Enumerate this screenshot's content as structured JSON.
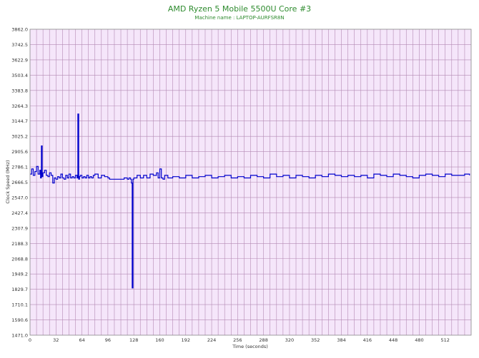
{
  "colors": {
    "title": "#2e8b2e",
    "plot_bg": "#f5e6fa",
    "grid": "#b48ab4",
    "line": "#0000cc"
  },
  "chart_data": {
    "type": "line",
    "title": "AMD Ryzen 5 Mobile 5500U Core #3",
    "subtitle": "Machine name : LAPTOP-AURFSR8N",
    "xlabel": "Time (seconds)",
    "ylabel": "Clock Speed (MHz)",
    "xlim": [
      0,
      544
    ],
    "ylim": [
      1471.0,
      3862.0
    ],
    "xticks": [
      "0",
      "32",
      "64",
      "96",
      "128",
      "160",
      "192",
      "224",
      "256",
      "288",
      "320",
      "352",
      "384",
      "416",
      "448",
      "480",
      "512"
    ],
    "yticks": [
      "3862.0",
      "3742.5",
      "3622.9",
      "3503.4",
      "3383.8",
      "3264.3",
      "3144.7",
      "3025.2",
      "2905.6",
      "2786.1",
      "2666.5",
      "2547.0",
      "2427.4",
      "2307.9",
      "2188.3",
      "2068.8",
      "1949.2",
      "1829.7",
      "1710.1",
      "1590.6",
      "1471.0"
    ],
    "grid": true,
    "series": [
      {
        "x": [
          0,
          2,
          4,
          6,
          8,
          10,
          12,
          13,
          14,
          15,
          16,
          18,
          20,
          22,
          24,
          26,
          28,
          30,
          32,
          34,
          36,
          38,
          40,
          42,
          44,
          46,
          48,
          50,
          52,
          54,
          56,
          58,
          59,
          60,
          61,
          62,
          64,
          66,
          68,
          70,
          72,
          74,
          76,
          78,
          80,
          84,
          88,
          92,
          96,
          98,
          100,
          102,
          104,
          108,
          112,
          116,
          120,
          122,
          124,
          125,
          126,
          127,
          128,
          130,
          132,
          136,
          140,
          144,
          148,
          152,
          156,
          158,
          160,
          162,
          164,
          166,
          170,
          176,
          184,
          192,
          200,
          208,
          216,
          224,
          232,
          240,
          248,
          256,
          264,
          272,
          280,
          288,
          296,
          304,
          312,
          320,
          328,
          336,
          344,
          352,
          360,
          368,
          376,
          384,
          392,
          400,
          408,
          416,
          424,
          432,
          440,
          448,
          456,
          464,
          472,
          480,
          488,
          496,
          504,
          512,
          520,
          528,
          536,
          542
        ],
        "y": [
          2730,
          2770,
          2720,
          2750,
          2790,
          2730,
          2760,
          2700,
          2950,
          2710,
          2740,
          2760,
          2720,
          2710,
          2740,
          2720,
          2660,
          2700,
          2690,
          2710,
          2700,
          2730,
          2700,
          2690,
          2720,
          2700,
          2730,
          2700,
          2710,
          2700,
          2720,
          2700,
          3200,
          2690,
          2710,
          2720,
          2700,
          2710,
          2700,
          2720,
          2700,
          2710,
          2700,
          2720,
          2730,
          2700,
          2720,
          2710,
          2700,
          2690,
          2690,
          2690,
          2690,
          2690,
          2690,
          2700,
          2690,
          2700,
          2690,
          2660,
          1840,
          2690,
          2700,
          2700,
          2720,
          2700,
          2720,
          2700,
          2730,
          2720,
          2740,
          2700,
          2770,
          2700,
          2690,
          2720,
          2700,
          2710,
          2700,
          2720,
          2700,
          2710,
          2720,
          2700,
          2710,
          2720,
          2700,
          2710,
          2700,
          2720,
          2710,
          2700,
          2730,
          2710,
          2720,
          2700,
          2720,
          2710,
          2700,
          2720,
          2710,
          2730,
          2720,
          2710,
          2720,
          2710,
          2720,
          2700,
          2730,
          2720,
          2710,
          2730,
          2720,
          2710,
          2700,
          2720,
          2730,
          2720,
          2710,
          2730,
          2720,
          2720,
          2730,
          2720
        ]
      }
    ]
  }
}
